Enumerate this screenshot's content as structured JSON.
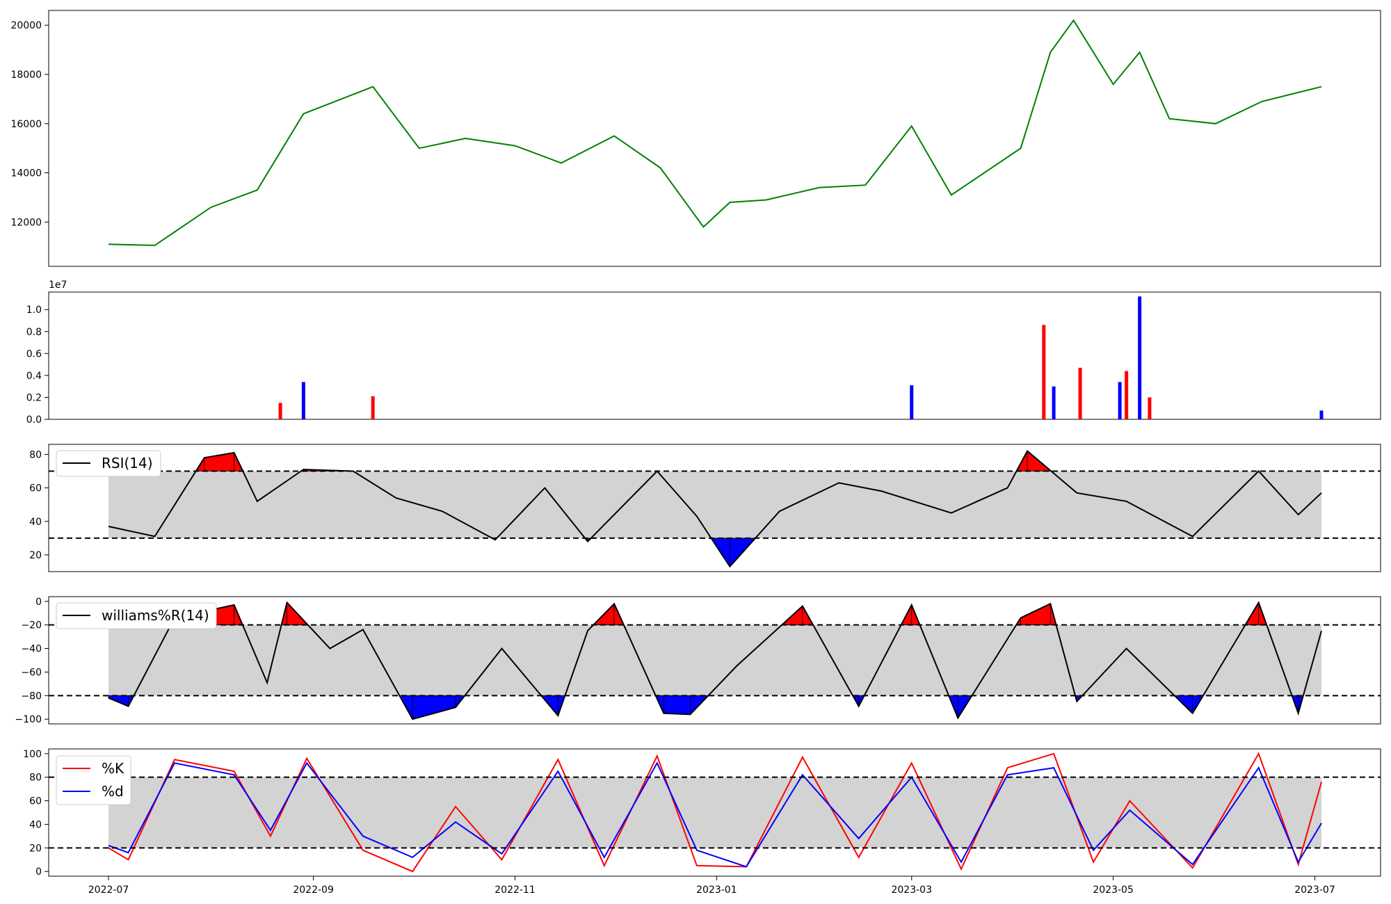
{
  "chart_data": [
    {
      "type": "line",
      "panel": "price",
      "color": "#008000",
      "x": [
        "2022-07-01",
        "2022-07-15",
        "2022-08-01",
        "2022-08-15",
        "2022-08-29",
        "2022-09-19",
        "2022-10-03",
        "2022-10-17",
        "2022-11-01",
        "2022-11-15",
        "2022-12-01",
        "2022-12-15",
        "2022-12-28",
        "2023-01-05",
        "2023-01-16",
        "2023-02-01",
        "2023-02-15",
        "2023-03-01",
        "2023-03-13",
        "2023-04-03",
        "2023-04-12",
        "2023-04-19",
        "2023-05-01",
        "2023-05-09",
        "2023-05-18",
        "2023-06-01",
        "2023-06-15",
        "2023-07-03"
      ],
      "values": [
        11100,
        11050,
        12600,
        13300,
        16400,
        17500,
        15000,
        15400,
        15100,
        14400,
        15500,
        14200,
        11800,
        12800,
        12900,
        13400,
        13500,
        15900,
        13100,
        15000,
        18900,
        20200,
        17600,
        18900,
        16200,
        16000,
        16900,
        17500
      ],
      "ylim": [
        10200,
        20600
      ],
      "yticks": [
        12000,
        14000,
        16000,
        18000,
        20000
      ],
      "yticklabels": [
        "12000",
        "14000",
        "16000",
        "18000",
        "20000"
      ]
    },
    {
      "type": "bar",
      "panel": "volume",
      "colors": [
        "#ff0000",
        "#0000ff"
      ],
      "offset_label": "1e7",
      "x": [
        "2022-08-22",
        "2022-08-29",
        "2022-09-19",
        "2023-03-01",
        "2023-04-10",
        "2023-04-13",
        "2023-04-21",
        "2023-05-03",
        "2023-05-05",
        "2023-05-09",
        "2023-05-12",
        "2023-07-03"
      ],
      "values": [
        0.15,
        0.34,
        0.21,
        0.31,
        0.86,
        0.3,
        0.47,
        0.34,
        0.44,
        1.12,
        0.2,
        0.08
      ],
      "ylim": [
        0,
        1.16
      ],
      "yticks": [
        0.0,
        0.2,
        0.4,
        0.6,
        0.8,
        1.0
      ],
      "yticklabels": [
        "0.0",
        "0.2",
        "0.4",
        "0.6",
        "0.8",
        "1.0"
      ]
    },
    {
      "type": "line",
      "panel": "rsi",
      "legend": "RSI(14)",
      "color": "#000000",
      "fill_band_color": "#d3d3d3",
      "overbought_color": "#ff0000",
      "oversold_color": "#0000ff",
      "thresholds": [
        70,
        30
      ],
      "x": [
        "2022-07-01",
        "2022-07-15",
        "2022-07-30",
        "2022-08-08",
        "2022-08-15",
        "2022-08-29",
        "2022-09-13",
        "2022-09-26",
        "2022-10-10",
        "2022-10-26",
        "2022-11-10",
        "2022-11-23",
        "2022-12-14",
        "2022-12-26",
        "2023-01-05",
        "2023-01-20",
        "2023-02-07",
        "2023-02-20",
        "2023-03-13",
        "2023-03-30",
        "2023-04-05",
        "2023-04-20",
        "2023-05-05",
        "2023-05-25",
        "2023-06-14",
        "2023-06-26",
        "2023-07-03"
      ],
      "values": [
        37,
        31,
        78,
        81,
        52,
        71,
        70,
        54,
        46,
        29,
        60,
        28,
        70,
        43,
        13,
        46,
        63,
        58,
        45,
        60,
        82,
        57,
        52,
        31,
        70,
        44,
        57
      ],
      "ylim": [
        10,
        86
      ],
      "yticks": [
        20,
        40,
        60,
        80
      ],
      "yticklabels": [
        "20",
        "40",
        "60",
        "80"
      ]
    },
    {
      "type": "line",
      "panel": "williams",
      "legend": "williams%R(14)",
      "color": "#000000",
      "fill_band_color": "#d3d3d3",
      "overbought_color": "#ff0000",
      "oversold_color": "#0000ff",
      "thresholds": [
        -20,
        -80
      ],
      "x": [
        "2022-07-01",
        "2022-07-07",
        "2022-07-21",
        "2022-08-08",
        "2022-08-18",
        "2022-08-24",
        "2022-09-06",
        "2022-09-16",
        "2022-10-01",
        "2022-10-14",
        "2022-10-28",
        "2022-11-14",
        "2022-11-23",
        "2022-12-01",
        "2022-12-16",
        "2022-12-24",
        "2023-01-07",
        "2023-01-27",
        "2023-02-13",
        "2023-03-01",
        "2023-03-15",
        "2023-04-03",
        "2023-04-12",
        "2023-04-20",
        "2023-05-05",
        "2023-05-25",
        "2023-06-14",
        "2023-06-26",
        "2023-07-03"
      ],
      "values": [
        -82,
        -89,
        -14,
        -3,
        -69,
        -1,
        -40,
        -24,
        -100,
        -90,
        -40,
        -97,
        -25,
        -2,
        -95,
        -96,
        -55,
        -4,
        -89,
        -3,
        -99,
        -14,
        -2,
        -85,
        -40,
        -95,
        -1,
        -95,
        -25
      ],
      "ylim": [
        -104,
        4
      ],
      "yticks": [
        -100,
        -80,
        -60,
        -40,
        -20,
        0
      ],
      "yticklabels": [
        "−100",
        "−80",
        "−60",
        "−40",
        "−20",
        "0"
      ]
    },
    {
      "type": "line",
      "panel": "stochastic",
      "fill_band_color": "#d3d3d3",
      "thresholds": [
        80,
        20
      ],
      "x": [
        "2022-07-01",
        "2022-07-07",
        "2022-07-21",
        "2022-08-08",
        "2022-08-19",
        "2022-08-30",
        "2022-09-16",
        "2022-10-01",
        "2022-10-14",
        "2022-10-28",
        "2022-11-14",
        "2022-11-28",
        "2022-12-14",
        "2022-12-26",
        "2023-01-10",
        "2023-01-27",
        "2023-02-13",
        "2023-03-01",
        "2023-03-16",
        "2023-03-30",
        "2023-04-13",
        "2023-04-25",
        "2023-05-06",
        "2023-05-25",
        "2023-06-14",
        "2023-06-26",
        "2023-07-03"
      ],
      "series": [
        {
          "name": "%K",
          "color": "#ff0000",
          "values": [
            20,
            10,
            95,
            85,
            30,
            96,
            18,
            0,
            55,
            10,
            95,
            5,
            98,
            5,
            4,
            97,
            12,
            92,
            2,
            88,
            100,
            8,
            60,
            3,
            100,
            6,
            76
          ]
        },
        {
          "name": "%d",
          "color": "#0000ff",
          "values": [
            22,
            16,
            92,
            82,
            35,
            92,
            30,
            12,
            42,
            15,
            85,
            12,
            92,
            18,
            4,
            82,
            28,
            80,
            8,
            82,
            88,
            18,
            52,
            6,
            88,
            8,
            41
          ]
        }
      ],
      "ylim": [
        -4,
        104
      ],
      "yticks": [
        0,
        20,
        40,
        60,
        80,
        100
      ],
      "yticklabels": [
        "0",
        "20",
        "40",
        "60",
        "80",
        "100"
      ],
      "xticks": [
        "2022-07-01",
        "2022-09-01",
        "2022-11-01",
        "2023-01-01",
        "2023-03-01",
        "2023-05-01",
        "2023-07-01"
      ],
      "xticklabels": [
        "2022-07",
        "2022-09",
        "2022-11",
        "2023-01",
        "2023-03",
        "2023-05",
        "2023-07"
      ]
    }
  ]
}
